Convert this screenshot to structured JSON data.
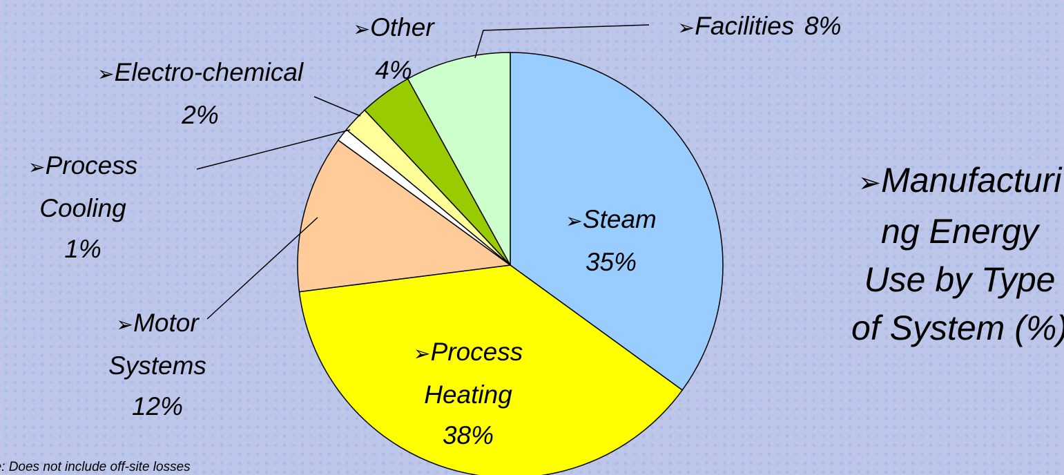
{
  "chart_data": {
    "type": "pie",
    "title_lines": [
      "Manufacturi",
      "ng Energy",
      "Use by Type",
      "of System (%)"
    ],
    "categories": [
      "Steam",
      "Process Heating",
      "Motor Systems",
      "Process Cooling",
      "Electro-chemical",
      "Other",
      "Facilities"
    ],
    "values": [
      35,
      38,
      12,
      1,
      2,
      4,
      8
    ],
    "value_labels": [
      "35%",
      "38%",
      "12%",
      "1%",
      "2%",
      "4%",
      "8%"
    ],
    "colors": [
      "#99ccff",
      "#ffff00",
      "#ffcc99",
      "#ffffff",
      "#ffff99",
      "#99cc00",
      "#ccffcc"
    ],
    "note": "Note: Does not include off-site losses"
  }
}
